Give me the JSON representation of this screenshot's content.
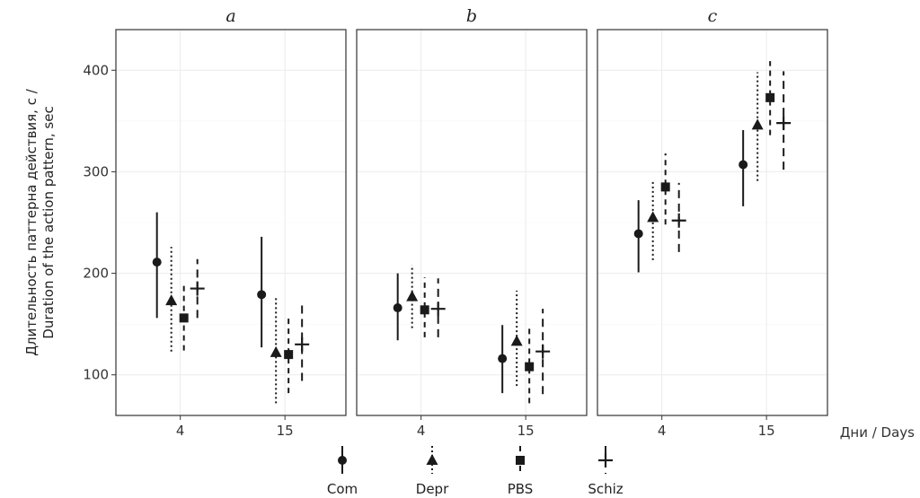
{
  "chart_data": {
    "type": "scatter",
    "subtype": "point-range",
    "facets": [
      "a",
      "b",
      "c"
    ],
    "categories": [
      "4",
      "15"
    ],
    "ylabel": [
      "Длительность паттерна действия, с /",
      "Duration of the action pattern, sec"
    ],
    "xlabel": "Дни / Days",
    "ylim": [
      60,
      440
    ],
    "yticks": [
      100,
      200,
      300,
      400
    ],
    "grid": true,
    "legend_position": "bottom",
    "series": [
      {
        "name": "Com",
        "marker": "circle",
        "line": "solid",
        "points": {
          "a": [
            {
              "x": "4",
              "y": 211,
              "lo": 156,
              "hi": 260
            },
            {
              "x": "15",
              "y": 179,
              "lo": 127,
              "hi": 236
            }
          ],
          "b": [
            {
              "x": "4",
              "y": 166,
              "lo": 134,
              "hi": 200
            },
            {
              "x": "15",
              "y": 116,
              "lo": 82,
              "hi": 149
            }
          ],
          "c": [
            {
              "x": "4",
              "y": 239,
              "lo": 201,
              "hi": 272
            },
            {
              "x": "15",
              "y": 307,
              "lo": 266,
              "hi": 341
            }
          ]
        }
      },
      {
        "name": "Depr",
        "marker": "triangle",
        "line": "dotted",
        "points": {
          "a": [
            {
              "x": "4",
              "y": 173,
              "lo": 123,
              "hi": 226
            },
            {
              "x": "15",
              "y": 122,
              "lo": 72,
              "hi": 178
            }
          ],
          "b": [
            {
              "x": "4",
              "y": 177,
              "lo": 146,
              "hi": 208
            },
            {
              "x": "15",
              "y": 133,
              "lo": 89,
              "hi": 183
            }
          ],
          "c": [
            {
              "x": "4",
              "y": 255,
              "lo": 213,
              "hi": 292
            },
            {
              "x": "15",
              "y": 346,
              "lo": 291,
              "hi": 398
            }
          ]
        }
      },
      {
        "name": "PBS",
        "marker": "square",
        "line": "dashed",
        "points": {
          "a": [
            {
              "x": "4",
              "y": 156,
              "lo": 124,
              "hi": 189
            },
            {
              "x": "15",
              "y": 120,
              "lo": 82,
              "hi": 156
            }
          ],
          "b": [
            {
              "x": "4",
              "y": 164,
              "lo": 137,
              "hi": 196
            },
            {
              "x": "15",
              "y": 108,
              "lo": 72,
              "hi": 146
            }
          ],
          "c": [
            {
              "x": "4",
              "y": 285,
              "lo": 248,
              "hi": 318
            },
            {
              "x": "15",
              "y": 373,
              "lo": 336,
              "hi": 409
            }
          ]
        }
      },
      {
        "name": "Schiz",
        "marker": "cross",
        "line": "longdash",
        "points": {
          "a": [
            {
              "x": "4",
              "y": 185,
              "lo": 156,
              "hi": 214
            },
            {
              "x": "15",
              "y": 130,
              "lo": 94,
              "hi": 173
            }
          ],
          "b": [
            {
              "x": "4",
              "y": 165,
              "lo": 137,
              "hi": 195
            },
            {
              "x": "15",
              "y": 123,
              "lo": 81,
              "hi": 165
            }
          ],
          "c": [
            {
              "x": "4",
              "y": 252,
              "lo": 221,
              "hi": 289
            },
            {
              "x": "15",
              "y": 348,
              "lo": 302,
              "hi": 399
            }
          ]
        }
      }
    ]
  }
}
